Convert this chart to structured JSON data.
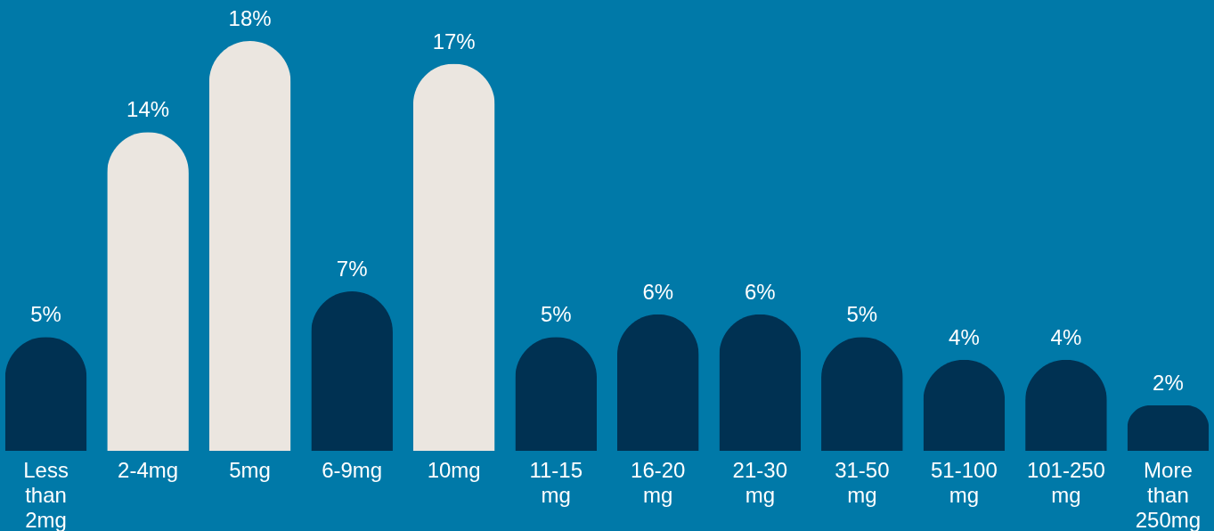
{
  "chart_data": {
    "type": "bar",
    "categories": [
      "Less than 2mg",
      "2-4mg",
      "5mg",
      "6-9mg",
      "10mg",
      "11-15 mg",
      "16-20 mg",
      "21-30 mg",
      "31-50 mg",
      "51-100 mg",
      "101-250 mg",
      "More than 250mg"
    ],
    "values": [
      5,
      14,
      18,
      7,
      17,
      5,
      6,
      6,
      5,
      4,
      4,
      2
    ],
    "colors": [
      "#003152",
      "#ebe6e0",
      "#ebe6e0",
      "#003152",
      "#ebe6e0",
      "#003152",
      "#003152",
      "#003152",
      "#003152",
      "#003152",
      "#003152",
      "#003152"
    ],
    "value_labels": [
      "5%",
      "14%",
      "18%",
      "7%",
      "17%",
      "5%",
      "6%",
      "6%",
      "5%",
      "4%",
      "4%",
      "2%"
    ],
    "tick_labels": "x",
    "grid": false
  }
}
